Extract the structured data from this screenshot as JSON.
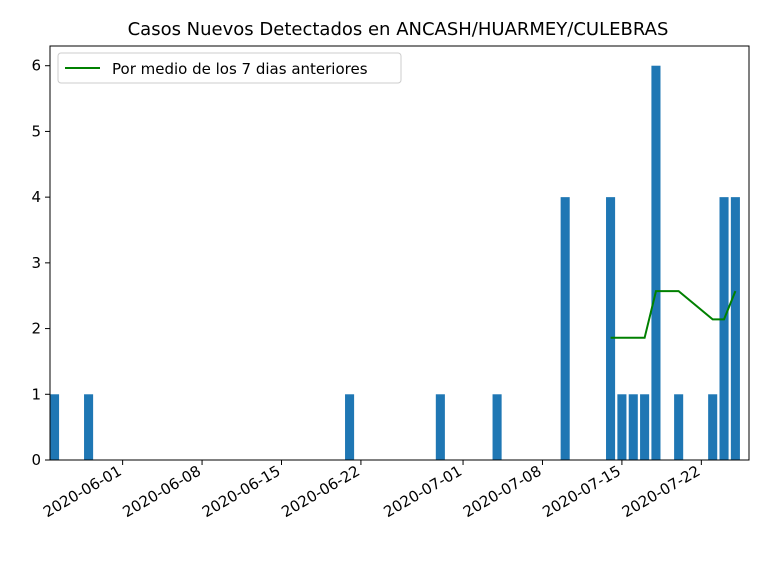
{
  "chart_data": {
    "type": "bar",
    "title": "Casos Nuevos Detectados en ANCASH/HUARMEY/CULEBRAS",
    "xlabel": "",
    "ylabel": "",
    "x_range": [
      "2020-05-26",
      "2020-07-26"
    ],
    "ylim": [
      0,
      6.3
    ],
    "yticks": [
      0,
      1,
      2,
      3,
      4,
      5,
      6
    ],
    "xticks": [
      "2020-06-01",
      "2020-06-08",
      "2020-06-15",
      "2020-06-22",
      "2020-07-01",
      "2020-07-08",
      "2020-07-15",
      "2020-07-22"
    ],
    "grid": false,
    "legend_position": "top-left",
    "series": [
      {
        "kind": "bar",
        "color": "#1f77b4",
        "points": [
          {
            "x": "2020-05-26",
            "y": 1
          },
          {
            "x": "2020-05-29",
            "y": 1
          },
          {
            "x": "2020-06-21",
            "y": 1
          },
          {
            "x": "2020-06-29",
            "y": 1
          },
          {
            "x": "2020-07-04",
            "y": 1
          },
          {
            "x": "2020-07-10",
            "y": 4
          },
          {
            "x": "2020-07-14",
            "y": 4
          },
          {
            "x": "2020-07-15",
            "y": 1
          },
          {
            "x": "2020-07-16",
            "y": 1
          },
          {
            "x": "2020-07-17",
            "y": 1
          },
          {
            "x": "2020-07-18",
            "y": 6
          },
          {
            "x": "2020-07-20",
            "y": 1
          },
          {
            "x": "2020-07-23",
            "y": 1
          },
          {
            "x": "2020-07-24",
            "y": 4
          },
          {
            "x": "2020-07-25",
            "y": 4
          }
        ]
      },
      {
        "kind": "line",
        "name": "Por medio de los 7 dias anteriores",
        "color": "#008000",
        "points": [
          {
            "x": "2020-07-14",
            "y": 1.86
          },
          {
            "x": "2020-07-17",
            "y": 1.86
          },
          {
            "x": "2020-07-18",
            "y": 2.57
          },
          {
            "x": "2020-07-20",
            "y": 2.57
          },
          {
            "x": "2020-07-23",
            "y": 2.14
          },
          {
            "x": "2020-07-24",
            "y": 2.14
          },
          {
            "x": "2020-07-25",
            "y": 2.57
          }
        ]
      }
    ]
  }
}
